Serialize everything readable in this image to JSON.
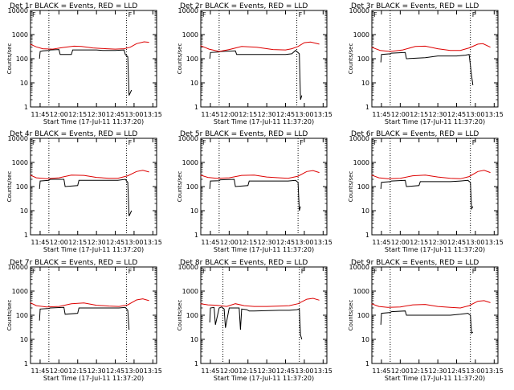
{
  "chart_data": [
    {
      "type": "line",
      "title": "Det 1r BLACK = Events, RED = LLD",
      "xlabel": "Start Time (17-Jul-11 11:37:20)",
      "ylabel": "Counts/sec",
      "ylim": [
        1,
        10000
      ],
      "yscale": "log",
      "xticks": [
        "11:45",
        "12:00",
        "12:15",
        "12:30",
        "12:45",
        "13:00",
        "13:15"
      ],
      "yticks": [
        "1",
        "10",
        "100",
        "1000",
        "10000"
      ],
      "vlines": [
        "11:52",
        "12:54"
      ],
      "corner_mark": "F",
      "series": [
        {
          "color": "#000000",
          "x": [
            "11:44:30",
            "11:45",
            "11:47",
            "11:52",
            "11:53",
            "12:00",
            "12:01",
            "12:10",
            "12:11",
            "12:30",
            "12:35",
            "12:45",
            "12:52",
            "12:53",
            "12:55",
            "12:56",
            "12:58"
          ],
          "y": [
            100,
            200,
            210,
            220,
            230,
            240,
            150,
            150,
            230,
            230,
            220,
            220,
            230,
            150,
            120,
            3,
            5
          ]
        },
        {
          "color": "#dd0000",
          "x": [
            "11:37",
            "11:42",
            "11:47",
            "11:55",
            "12:03",
            "12:12",
            "12:18",
            "12:27",
            "12:38",
            "12:45",
            "12:52",
            "12:57",
            "13:02",
            "13:08",
            "13:12"
          ],
          "y": [
            400,
            310,
            260,
            250,
            290,
            330,
            320,
            280,
            260,
            250,
            260,
            300,
            420,
            500,
            480
          ]
        }
      ]
    },
    {
      "type": "line",
      "title": "Det 2r BLACK = Events, RED = LLD",
      "xlabel": "Start Time (17-Jul-11 11:37:20)",
      "ylabel": "Counts/sec",
      "ylim": [
        1,
        10000
      ],
      "yscale": "log",
      "xticks": [
        "11:45",
        "12:00",
        "12:15",
        "12:30",
        "12:45",
        "13:00",
        "13:15"
      ],
      "yticks": [
        "1",
        "10",
        "100",
        "1000",
        "10000"
      ],
      "vlines": [
        "11:52",
        "12:54"
      ],
      "corner_mark": "F",
      "series": [
        {
          "color": "#000000",
          "x": [
            "11:44:30",
            "11:45",
            "11:52",
            "11:53",
            "12:05",
            "12:06",
            "12:20",
            "12:45",
            "12:50",
            "12:53",
            "12:56",
            "12:57",
            "12:58"
          ],
          "y": [
            100,
            180,
            190,
            200,
            210,
            150,
            150,
            150,
            160,
            220,
            160,
            2,
            3
          ]
        },
        {
          "color": "#dd0000",
          "x": [
            "11:37",
            "11:44",
            "11:52",
            "12:00",
            "12:10",
            "12:22",
            "12:35",
            "12:45",
            "12:50",
            "12:55",
            "13:00",
            "13:05",
            "13:12"
          ],
          "y": [
            350,
            250,
            200,
            240,
            320,
            300,
            240,
            230,
            260,
            320,
            460,
            490,
            400
          ]
        }
      ]
    },
    {
      "type": "line",
      "title": "Det 3r BLACK = Events, RED = LLD",
      "xlabel": "Start Time (17-Jul-11 11:37:20)",
      "ylabel": "Counts/sec",
      "ylim": [
        1,
        10000
      ],
      "yscale": "log",
      "xticks": [
        "11:45",
        "12:00",
        "12:15",
        "12:30",
        "12:45",
        "13:00",
        "13:15"
      ],
      "yticks": [
        "1",
        "10",
        "100",
        "1000",
        "10000"
      ],
      "vlines": [
        "11:52",
        "12:56"
      ],
      "corner_mark": "F",
      "series": [
        {
          "color": "#000000",
          "x": [
            "11:44:30",
            "11:45",
            "11:52",
            "11:53",
            "12:04",
            "12:05",
            "12:20",
            "12:30",
            "12:45",
            "12:52",
            "12:55",
            "12:57",
            "12:58"
          ],
          "y": [
            70,
            150,
            160,
            170,
            180,
            100,
            110,
            130,
            130,
            140,
            150,
            20,
            8
          ]
        },
        {
          "color": "#dd0000",
          "x": [
            "11:37",
            "11:44",
            "11:52",
            "12:02",
            "12:12",
            "12:20",
            "12:30",
            "12:40",
            "12:48",
            "12:55",
            "13:02",
            "13:06",
            "13:12"
          ],
          "y": [
            300,
            220,
            200,
            230,
            320,
            330,
            260,
            220,
            220,
            280,
            400,
            420,
            300
          ]
        }
      ]
    },
    {
      "type": "line",
      "title": "Det 4r BLACK = Events, RED = LLD",
      "xlabel": "Start Time (17-Jul-11 11:37:20)",
      "ylabel": "Counts/sec",
      "ylim": [
        1,
        10000
      ],
      "yscale": "log",
      "xticks": [
        "11:45",
        "12:00",
        "12:15",
        "12:30",
        "12:45",
        "13:00",
        "13:15"
      ],
      "yticks": [
        "1",
        "10",
        "100",
        "1000",
        "10000"
      ],
      "vlines": [
        "11:52",
        "12:54"
      ],
      "corner_mark": "F",
      "series": [
        {
          "color": "#000000",
          "x": [
            "11:44:30",
            "11:45",
            "11:52",
            "11:53",
            "12:04",
            "12:05",
            "12:15",
            "12:16",
            "12:40",
            "12:47",
            "12:53",
            "12:55",
            "12:56",
            "12:58"
          ],
          "y": [
            80,
            170,
            180,
            200,
            200,
            100,
            110,
            180,
            180,
            180,
            200,
            150,
            6,
            10
          ]
        },
        {
          "color": "#dd0000",
          "x": [
            "11:37",
            "11:42",
            "11:50",
            "12:00",
            "12:10",
            "12:20",
            "12:30",
            "12:40",
            "12:47",
            "12:55",
            "13:02",
            "13:07",
            "13:12"
          ],
          "y": [
            300,
            230,
            210,
            230,
            300,
            290,
            240,
            220,
            220,
            280,
            420,
            470,
            400
          ]
        }
      ]
    },
    {
      "type": "line",
      "title": "Det 5r BLACK = Events, RED = LLD",
      "xlabel": "Start Time (17-Jul-11 11:37:20)",
      "ylabel": "Counts/sec",
      "ylim": [
        1,
        10000
      ],
      "yscale": "log",
      "xticks": [
        "11:45",
        "12:00",
        "12:15",
        "12:30",
        "12:45",
        "13:00",
        "13:15"
      ],
      "yticks": [
        "1",
        "10",
        "100",
        "1000",
        "10000"
      ],
      "vlines": [
        "11:52",
        "12:55"
      ],
      "corner_mark": "F",
      "series": [
        {
          "color": "#000000",
          "x": [
            "11:44:30",
            "11:45",
            "11:52",
            "11:53",
            "12:04",
            "12:05",
            "12:15",
            "12:16",
            "12:40",
            "12:47",
            "12:53",
            "12:55",
            "12:56",
            "12:57"
          ],
          "y": [
            80,
            170,
            175,
            190,
            200,
            100,
            110,
            170,
            170,
            170,
            180,
            150,
            10,
            15
          ]
        },
        {
          "color": "#dd0000",
          "x": [
            "11:37",
            "11:43",
            "11:50",
            "12:00",
            "12:10",
            "12:20",
            "12:30",
            "12:40",
            "12:47",
            "12:55",
            "13:02",
            "13:07",
            "13:12"
          ],
          "y": [
            300,
            240,
            220,
            230,
            290,
            300,
            250,
            230,
            220,
            270,
            420,
            460,
            380
          ]
        }
      ]
    },
    {
      "type": "line",
      "title": "Det 6r BLACK = Events, RED = LLD",
      "xlabel": "Start Time (17-Jul-11 11:37:20)",
      "ylabel": "Counts/sec",
      "ylim": [
        1,
        10000
      ],
      "yscale": "log",
      "xticks": [
        "11:45",
        "12:00",
        "12:15",
        "12:30",
        "12:45",
        "13:00",
        "13:15"
      ],
      "yticks": [
        "1",
        "10",
        "100",
        "1000",
        "10000"
      ],
      "vlines": [
        "11:52",
        "12:56"
      ],
      "corner_mark": "F",
      "series": [
        {
          "color": "#000000",
          "x": [
            "11:44:30",
            "11:45",
            "11:52",
            "11:53",
            "12:04",
            "12:05",
            "12:15",
            "12:16",
            "12:40",
            "12:48",
            "12:54",
            "12:56",
            "12:57",
            "12:58"
          ],
          "y": [
            80,
            150,
            160,
            170,
            180,
            100,
            110,
            160,
            160,
            170,
            180,
            150,
            12,
            15
          ]
        },
        {
          "color": "#dd0000",
          "x": [
            "11:37",
            "11:43",
            "11:50",
            "12:00",
            "12:10",
            "12:20",
            "12:30",
            "12:40",
            "12:48",
            "12:55",
            "13:02",
            "13:07",
            "13:12"
          ],
          "y": [
            300,
            230,
            210,
            220,
            280,
            300,
            250,
            220,
            210,
            260,
            420,
            470,
            380
          ]
        }
      ]
    },
    {
      "type": "line",
      "title": "Det 7r BLACK = Events, RED = LLD",
      "xlabel": "Start Time (17-Jul-11 11:37:20)",
      "ylabel": "Counts/sec",
      "ylim": [
        1,
        10000
      ],
      "yscale": "log",
      "xticks": [
        "11:45",
        "12:00",
        "12:15",
        "12:30",
        "12:45",
        "13:00",
        "13:15"
      ],
      "yticks": [
        "1",
        "10",
        "100",
        "1000",
        "10000"
      ],
      "vlines": [
        "11:52",
        "12:54"
      ],
      "corner_mark": "F",
      "series": [
        {
          "color": "#000000",
          "x": [
            "11:44:30",
            "11:45",
            "11:52",
            "11:53",
            "12:04",
            "12:05",
            "12:15",
            "12:16",
            "12:40",
            "12:48",
            "12:53",
            "12:55",
            "12:56"
          ],
          "y": [
            60,
            180,
            190,
            200,
            210,
            110,
            120,
            200,
            200,
            200,
            210,
            160,
            25
          ]
        },
        {
          "color": "#dd0000",
          "x": [
            "11:37",
            "11:42",
            "11:50",
            "12:00",
            "12:10",
            "12:20",
            "12:30",
            "12:40",
            "12:48",
            "12:55",
            "13:02",
            "13:07",
            "13:12"
          ],
          "y": [
            330,
            250,
            220,
            230,
            300,
            320,
            260,
            240,
            230,
            270,
            430,
            480,
            400
          ]
        }
      ]
    },
    {
      "type": "line",
      "title": "Det 8r BLACK = Events, RED = LLD",
      "xlabel": "Start Time (17-Jul-11 11:37:20)",
      "ylabel": "Counts/sec",
      "ylim": [
        1,
        10000
      ],
      "yscale": "log",
      "xticks": [
        "11:45",
        "12:00",
        "12:15",
        "12:30",
        "12:45",
        "13:00",
        "13:15"
      ],
      "yticks": [
        "1",
        "10",
        "100",
        "1000",
        "10000"
      ],
      "vlines": [
        "11:55",
        "12:56"
      ],
      "corner_mark": "F",
      "series": [
        {
          "color": "#000000",
          "x": [
            "11:44:30",
            "11:45",
            "11:48",
            "11:49",
            "11:52",
            "11:54",
            "11:56",
            "11:57",
            "12:00",
            "12:08",
            "12:09",
            "12:10",
            "12:14",
            "12:16",
            "12:20",
            "12:40",
            "12:48",
            "12:54",
            "12:56",
            "12:57",
            "12:58"
          ],
          "y": [
            50,
            200,
            210,
            40,
            200,
            220,
            180,
            30,
            200,
            200,
            25,
            180,
            170,
            150,
            150,
            160,
            160,
            170,
            180,
            15,
            10
          ]
        },
        {
          "color": "#dd0000",
          "x": [
            "11:37",
            "11:43",
            "11:50",
            "11:58",
            "12:05",
            "12:12",
            "12:20",
            "12:30",
            "12:40",
            "12:48",
            "12:55",
            "13:02",
            "13:07",
            "13:12"
          ],
          "y": [
            300,
            270,
            260,
            230,
            300,
            250,
            230,
            230,
            240,
            250,
            300,
            460,
            500,
            420
          ]
        }
      ]
    },
    {
      "type": "line",
      "title": "Det 9r BLACK = Events, RED = LLD",
      "xlabel": "Start Time (17-Jul-11 11:37:20)",
      "ylabel": "Counts/sec",
      "ylim": [
        1,
        10000
      ],
      "yscale": "log",
      "xticks": [
        "11:45",
        "12:00",
        "12:15",
        "12:30",
        "12:45",
        "13:00",
        "13:15"
      ],
      "yticks": [
        "1",
        "10",
        "100",
        "1000",
        "10000"
      ],
      "vlines": [
        "11:52",
        "12:56"
      ],
      "corner_mark": "F",
      "series": [
        {
          "color": "#000000",
          "x": [
            "11:44:30",
            "11:45",
            "11:52",
            "11:53",
            "12:04",
            "12:05",
            "12:40",
            "12:48",
            "12:54",
            "12:56",
            "12:57",
            "12:58"
          ],
          "y": [
            40,
            120,
            130,
            140,
            150,
            100,
            100,
            110,
            120,
            100,
            18,
            20
          ]
        },
        {
          "color": "#dd0000",
          "x": [
            "11:37",
            "11:43",
            "11:50",
            "12:00",
            "12:10",
            "12:20",
            "12:30",
            "12:40",
            "12:48",
            "12:55",
            "13:02",
            "13:07",
            "13:12"
          ],
          "y": [
            300,
            230,
            210,
            220,
            270,
            280,
            230,
            210,
            200,
            250,
            380,
            400,
            330
          ]
        }
      ]
    }
  ]
}
